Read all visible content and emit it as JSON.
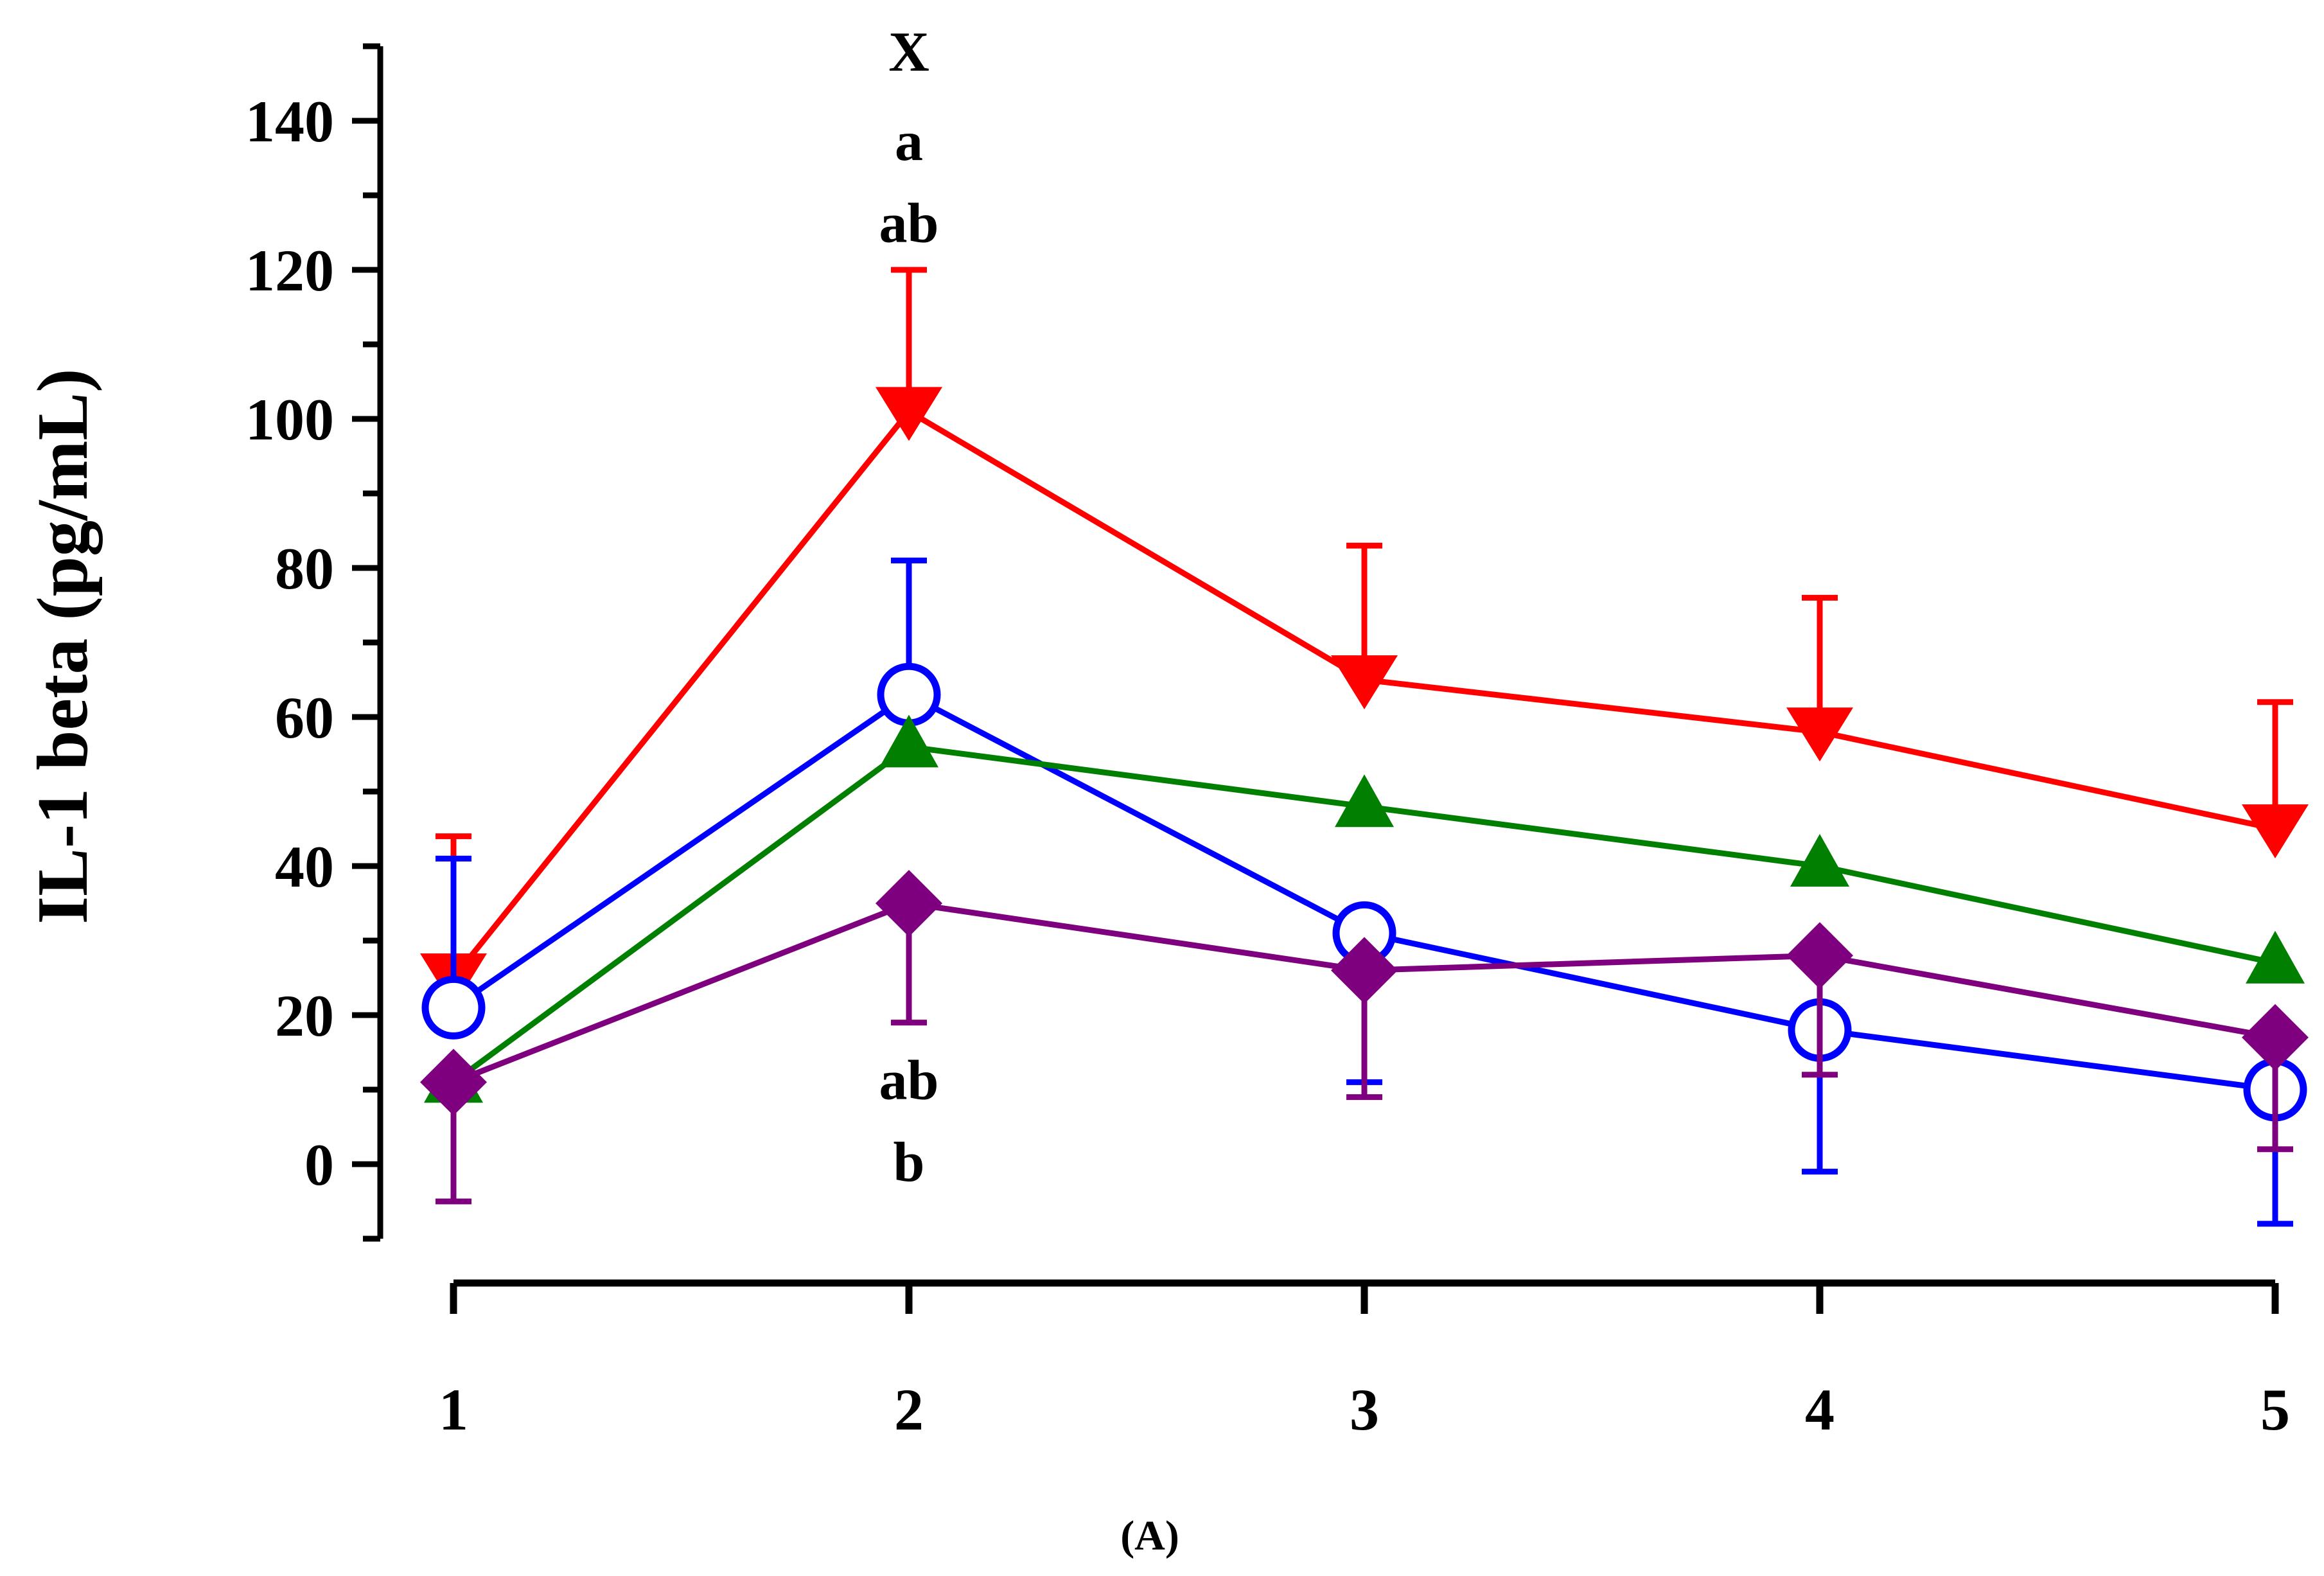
{
  "chart_data": {
    "type": "line",
    "title": "",
    "panel_label": "(A)",
    "xlabel": "",
    "ylabel": "IL-1 beta (pg/mL)",
    "categories": [
      "1",
      "2",
      "3",
      "4",
      "5"
    ],
    "x": [
      1,
      2,
      3,
      4,
      5
    ],
    "xlim": [
      1,
      5
    ],
    "ylim": [
      -10,
      150
    ],
    "yticks": [
      0,
      20,
      40,
      60,
      80,
      100,
      120,
      140
    ],
    "grid": false,
    "legend": "none",
    "series": [
      {
        "name": "Red (inverted triangle)",
        "color": "#ff0000",
        "marker": "triangle-down",
        "values": [
          25,
          101,
          65,
          58,
          45
        ],
        "err_upper": [
          19,
          19,
          18,
          18,
          17
        ],
        "err_lower": [
          0,
          0,
          0,
          0,
          0
        ]
      },
      {
        "name": "Blue (open circle)",
        "color": "#0000ff",
        "marker": "circle-open",
        "values": [
          21,
          63,
          31,
          18,
          10
        ],
        "err_upper": [
          20,
          18,
          0,
          0,
          0
        ],
        "err_lower": [
          0,
          0,
          20,
          19,
          18
        ]
      },
      {
        "name": "Green (triangle)",
        "color": "#007f00",
        "marker": "triangle-up",
        "values": [
          11,
          56,
          48,
          40,
          27
        ],
        "err_upper": [
          0,
          0,
          0,
          0,
          0
        ],
        "err_lower": [
          16,
          0,
          0,
          0,
          0
        ]
      },
      {
        "name": "Purple (diamond)",
        "color": "#7f007f",
        "marker": "diamond",
        "values": [
          11,
          35,
          26,
          28,
          17
        ],
        "err_upper": [
          0,
          0,
          0,
          0,
          0
        ],
        "err_lower": [
          16,
          16,
          17,
          16,
          15
        ]
      }
    ],
    "annotations": [
      {
        "text": "X",
        "x": 2,
        "y": 149.5
      },
      {
        "text": "a",
        "x": 2,
        "y": 137.5
      },
      {
        "text": "ab",
        "x": 2,
        "y": 126.5
      },
      {
        "text": "ab",
        "x": 2,
        "y": 11.5
      },
      {
        "text": "b",
        "x": 2,
        "y": 0.5
      }
    ]
  }
}
